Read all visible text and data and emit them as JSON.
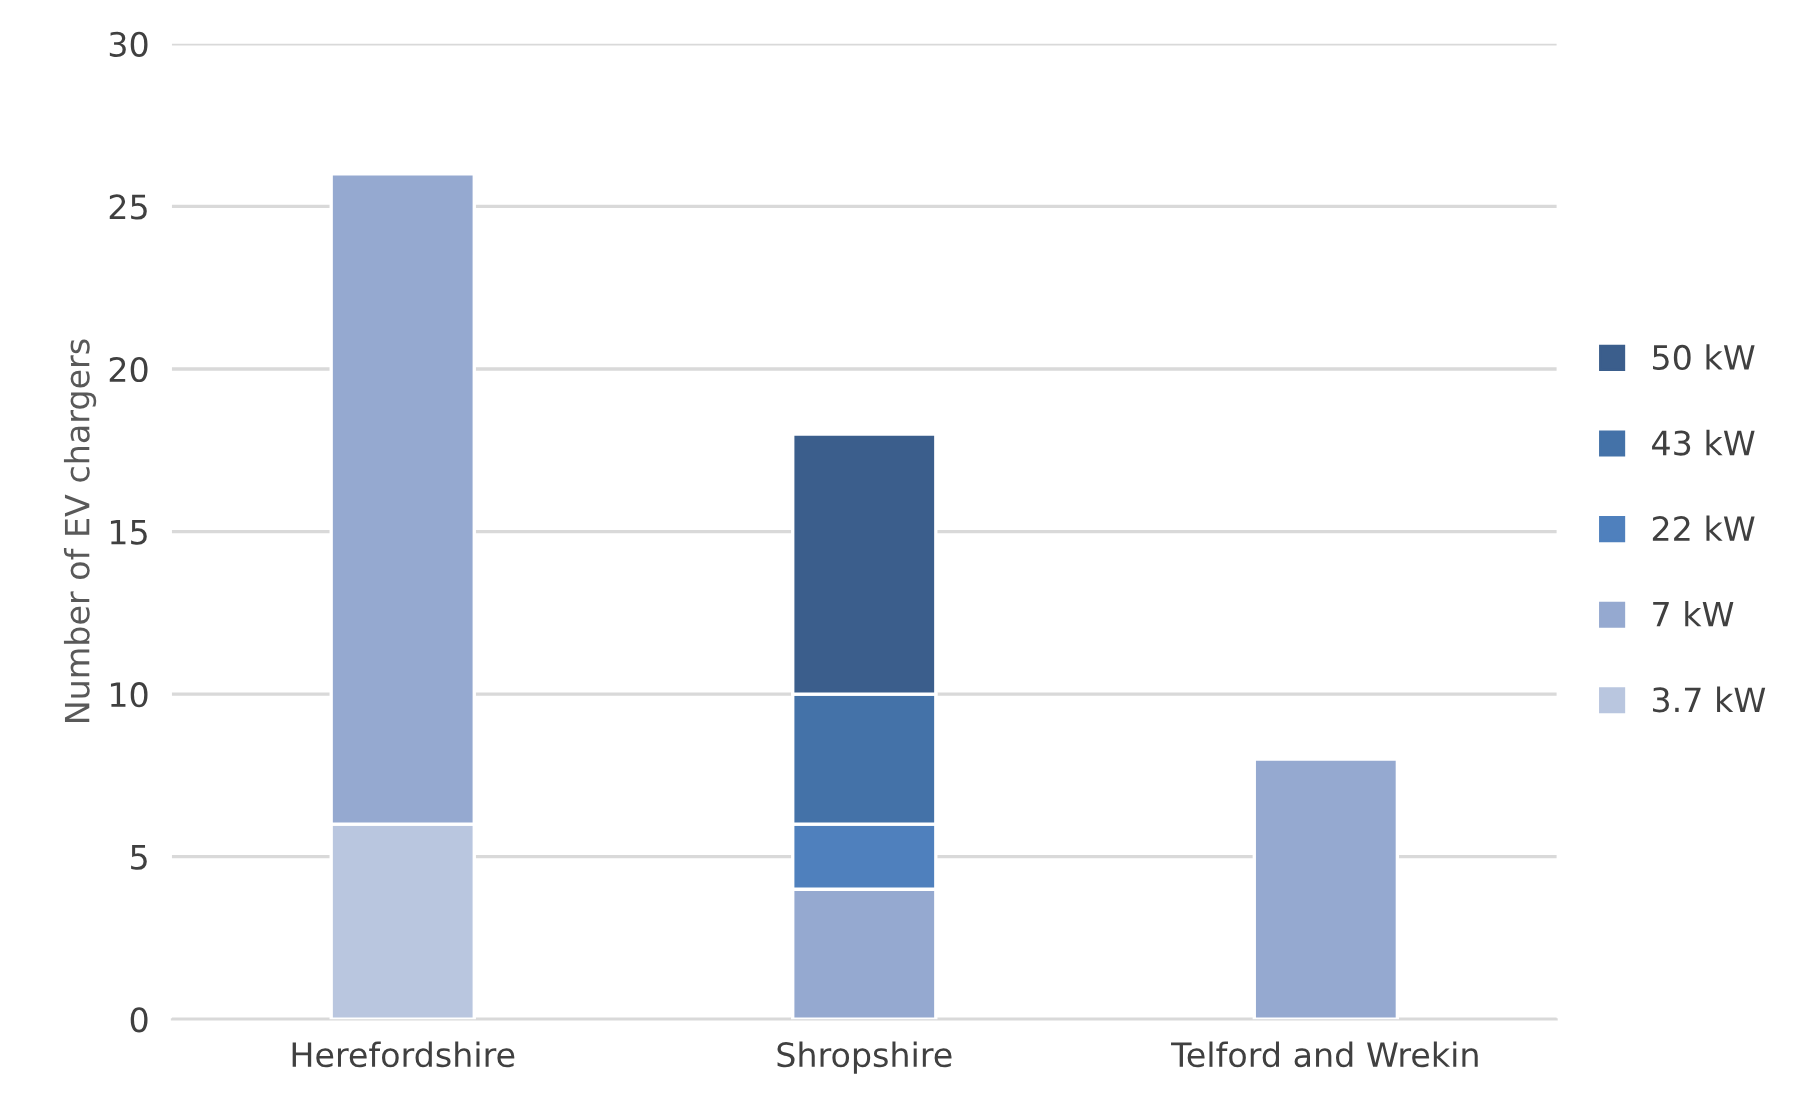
{
  "chart_data": {
    "type": "bar",
    "stacked": true,
    "ylabel": "Number of EV chargers",
    "categories": [
      "Herefordshire",
      "Shropshire",
      "Telford and Wrekin"
    ],
    "series": [
      {
        "name": "3.7 kW",
        "color": "#b9c6df",
        "values": [
          6,
          null,
          null
        ]
      },
      {
        "name": "7 kW",
        "color": "#95a9d0",
        "values": [
          20,
          4,
          8
        ]
      },
      {
        "name": "22 kW",
        "color": "#4f80bd",
        "values": [
          null,
          2,
          null
        ]
      },
      {
        "name": "43 kW",
        "color": "#4472a8",
        "values": [
          null,
          4,
          null
        ]
      },
      {
        "name": "50 kW",
        "color": "#3b5e8c",
        "values": [
          null,
          8,
          null
        ]
      }
    ],
    "ylim": [
      0,
      30
    ],
    "yticks": [
      0,
      5,
      10,
      15,
      20,
      25,
      30
    ],
    "grid": "y",
    "legend": "right"
  }
}
